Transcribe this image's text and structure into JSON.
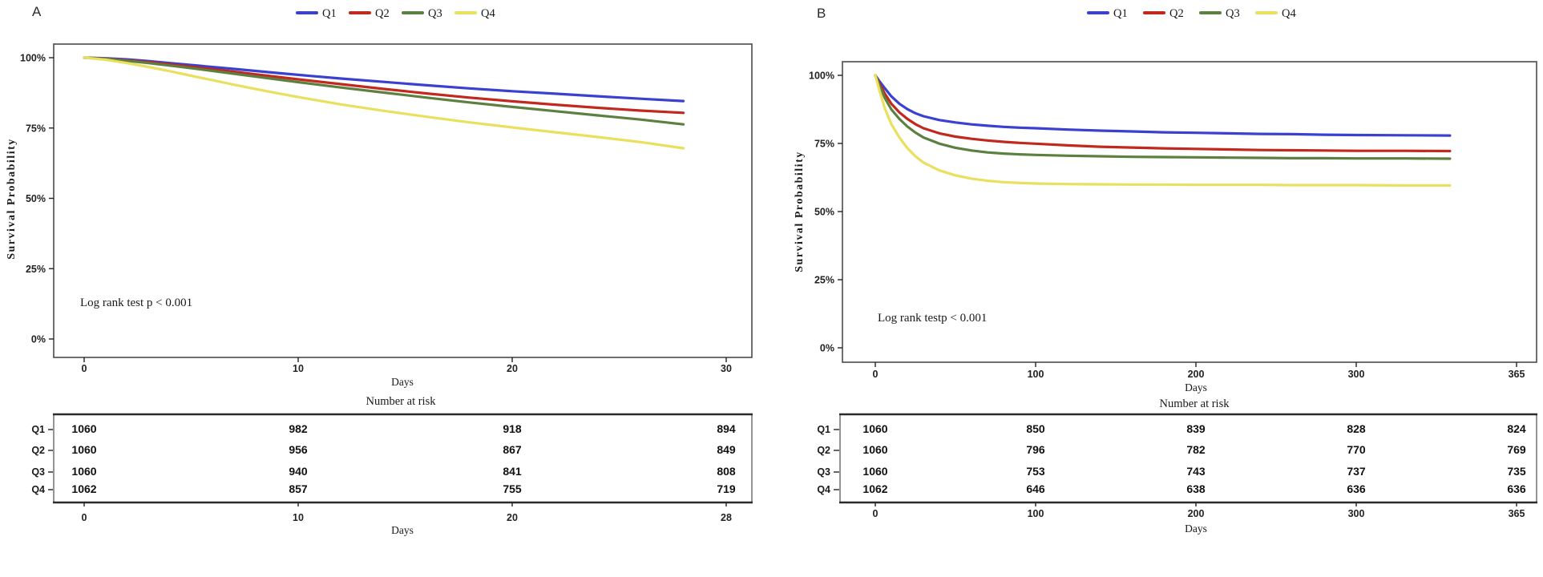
{
  "chart_data": [
    {
      "type": "line",
      "panel_label": "A",
      "xlabel": "Days",
      "ylabel": "Survival Probability",
      "annotation": "Log rank test p < 0.001",
      "legend_position": "top",
      "grid": false,
      "ylim": [
        0,
        100
      ],
      "xlim": [
        0,
        30
      ],
      "y_tick_labels": [
        "100%",
        "75%",
        "50%",
        "25%",
        "0%"
      ],
      "y_tick_values": [
        100,
        75,
        50,
        25,
        0
      ],
      "x_tick_labels": [
        "0",
        "10",
        "20",
        "30"
      ],
      "x_tick_days": [
        0,
        10,
        20,
        30
      ],
      "series": [
        {
          "name": "Q1",
          "color": "#3a41cf",
          "x": [
            0,
            1,
            2,
            3,
            4,
            5,
            6,
            7,
            8,
            9,
            10,
            12,
            14,
            16,
            18,
            20,
            22,
            24,
            26,
            28
          ],
          "y": [
            100,
            99.8,
            99.4,
            98.8,
            98.1,
            97.4,
            96.7,
            96.0,
            95.3,
            94.6,
            93.9,
            92.6,
            91.4,
            90.2,
            89.1,
            88.1,
            87.2,
            86.3,
            85.4,
            84.6
          ]
        },
        {
          "name": "Q2",
          "color": "#c1281e",
          "x": [
            0,
            1,
            2,
            3,
            4,
            5,
            6,
            7,
            8,
            9,
            10,
            12,
            14,
            16,
            18,
            20,
            22,
            24,
            26,
            28
          ],
          "y": [
            100,
            99.7,
            99.1,
            98.4,
            97.6,
            96.8,
            95.9,
            95.0,
            94.1,
            93.2,
            92.3,
            90.6,
            88.9,
            87.3,
            85.8,
            84.5,
            83.3,
            82.2,
            81.2,
            80.4
          ]
        },
        {
          "name": "Q3",
          "color": "#5c8040",
          "x": [
            0,
            1,
            2,
            3,
            4,
            5,
            6,
            7,
            8,
            9,
            10,
            12,
            14,
            16,
            18,
            20,
            22,
            24,
            26,
            28
          ],
          "y": [
            100,
            99.6,
            98.9,
            98.1,
            97.2,
            96.3,
            95.3,
            94.3,
            93.3,
            92.3,
            91.3,
            89.4,
            87.6,
            85.8,
            84.1,
            82.5,
            81.0,
            79.5,
            78.0,
            76.3
          ]
        },
        {
          "name": "Q4",
          "color": "#e9e05f",
          "x": [
            0,
            1,
            2,
            3,
            4,
            5,
            6,
            7,
            8,
            9,
            10,
            12,
            14,
            16,
            18,
            20,
            22,
            24,
            26,
            28
          ],
          "y": [
            100,
            99.3,
            98.1,
            96.7,
            95.2,
            93.6,
            92.0,
            90.4,
            88.9,
            87.4,
            86.0,
            83.4,
            81.1,
            79.0,
            77.0,
            75.2,
            73.5,
            71.8,
            70.0,
            67.8
          ]
        }
      ],
      "risk_table": {
        "title": "Number at risk",
        "xlabel": "Days",
        "x_tick_labels": [
          "0",
          "10",
          "20",
          "28"
        ],
        "rows": [
          {
            "name": "Q1",
            "color": "#3a41cf",
            "values": [
              "1060",
              "982",
              "918",
              "894"
            ]
          },
          {
            "name": "Q2",
            "color": "#c1281e",
            "values": [
              "1060",
              "956",
              "867",
              "849"
            ]
          },
          {
            "name": "Q3",
            "color": "#5c8040",
            "values": [
              "1060",
              "940",
              "841",
              "808"
            ]
          },
          {
            "name": "Q4",
            "color": "#e9e05f",
            "values": [
              "1062",
              "857",
              "755",
              "719"
            ]
          }
        ]
      }
    },
    {
      "type": "line",
      "panel_label": "B",
      "xlabel": "Days",
      "ylabel": "Survival Probability",
      "annotation": "Log rank testp < 0.001",
      "legend_position": "top",
      "grid": false,
      "ylim": [
        0,
        100
      ],
      "xlim": [
        0,
        365
      ],
      "y_tick_labels": [
        "100%",
        "75%",
        "50%",
        "25%",
        "0%"
      ],
      "y_tick_values": [
        100,
        75,
        50,
        25,
        0
      ],
      "x_tick_labels": [
        "0",
        "100",
        "200",
        "300",
        "365"
      ],
      "x_tick_days": [
        0,
        100,
        200,
        300,
        365
      ],
      "series": [
        {
          "name": "Q1",
          "color": "#3a41cf",
          "x": [
            0,
            3,
            6,
            10,
            15,
            20,
            25,
            30,
            40,
            50,
            60,
            70,
            80,
            90,
            100,
            120,
            140,
            160,
            180,
            200,
            220,
            240,
            260,
            280,
            300,
            320,
            338
          ],
          "y": [
            100,
            97.5,
            95.2,
            92.3,
            89.6,
            87.6,
            86.1,
            85.0,
            83.6,
            82.7,
            82.0,
            81.5,
            81.1,
            80.8,
            80.6,
            80.1,
            79.7,
            79.4,
            79.1,
            78.9,
            78.7,
            78.5,
            78.4,
            78.2,
            78.1,
            78.0,
            77.9
          ]
        },
        {
          "name": "Q2",
          "color": "#c1281e",
          "x": [
            0,
            3,
            6,
            10,
            15,
            20,
            25,
            30,
            40,
            50,
            60,
            70,
            80,
            90,
            100,
            120,
            140,
            160,
            180,
            200,
            220,
            240,
            260,
            280,
            300,
            320,
            338
          ],
          "y": [
            100,
            96.6,
            93.2,
            89.6,
            86.4,
            84.0,
            82.1,
            80.6,
            78.7,
            77.5,
            76.7,
            76.1,
            75.6,
            75.2,
            74.9,
            74.3,
            73.8,
            73.5,
            73.2,
            73.0,
            72.8,
            72.6,
            72.5,
            72.4,
            72.3,
            72.3,
            72.2
          ]
        },
        {
          "name": "Q3",
          "color": "#5c8040",
          "x": [
            0,
            3,
            6,
            10,
            15,
            20,
            25,
            30,
            40,
            50,
            60,
            70,
            80,
            90,
            100,
            120,
            140,
            160,
            180,
            200,
            220,
            240,
            260,
            280,
            300,
            320,
            338
          ],
          "y": [
            100,
            95.6,
            91.6,
            87.5,
            84.0,
            81.2,
            79.0,
            77.2,
            74.9,
            73.4,
            72.4,
            71.7,
            71.3,
            71.0,
            70.8,
            70.5,
            70.3,
            70.1,
            70.0,
            69.9,
            69.8,
            69.7,
            69.6,
            69.6,
            69.5,
            69.5,
            69.4
          ]
        },
        {
          "name": "Q4",
          "color": "#e9e05f",
          "x": [
            0,
            3,
            6,
            10,
            15,
            20,
            25,
            30,
            40,
            50,
            60,
            70,
            80,
            90,
            100,
            120,
            140,
            160,
            180,
            200,
            220,
            240,
            260,
            280,
            300,
            320,
            338
          ],
          "y": [
            100,
            93.6,
            87.8,
            82.1,
            77.2,
            73.3,
            70.3,
            68.0,
            65.1,
            63.3,
            62.1,
            61.3,
            60.8,
            60.5,
            60.3,
            60.1,
            60.0,
            59.9,
            59.9,
            59.8,
            59.8,
            59.8,
            59.7,
            59.7,
            59.7,
            59.6,
            59.6
          ]
        }
      ],
      "risk_table": {
        "title": "Number at risk",
        "xlabel": "Days",
        "x_tick_labels": [
          "0",
          "100",
          "200",
          "300",
          "365"
        ],
        "rows": [
          {
            "name": "Q1",
            "color": "#3a41cf",
            "values": [
              "1060",
              "850",
              "839",
              "828",
              "824"
            ]
          },
          {
            "name": "Q2",
            "color": "#c1281e",
            "values": [
              "1060",
              "796",
              "782",
              "770",
              "769"
            ]
          },
          {
            "name": "Q3",
            "color": "#5c8040",
            "values": [
              "1060",
              "753",
              "743",
              "737",
              "735"
            ]
          },
          {
            "name": "Q4",
            "color": "#e9e05f",
            "values": [
              "1062",
              "646",
              "638",
              "636",
              "636"
            ]
          }
        ]
      }
    }
  ]
}
